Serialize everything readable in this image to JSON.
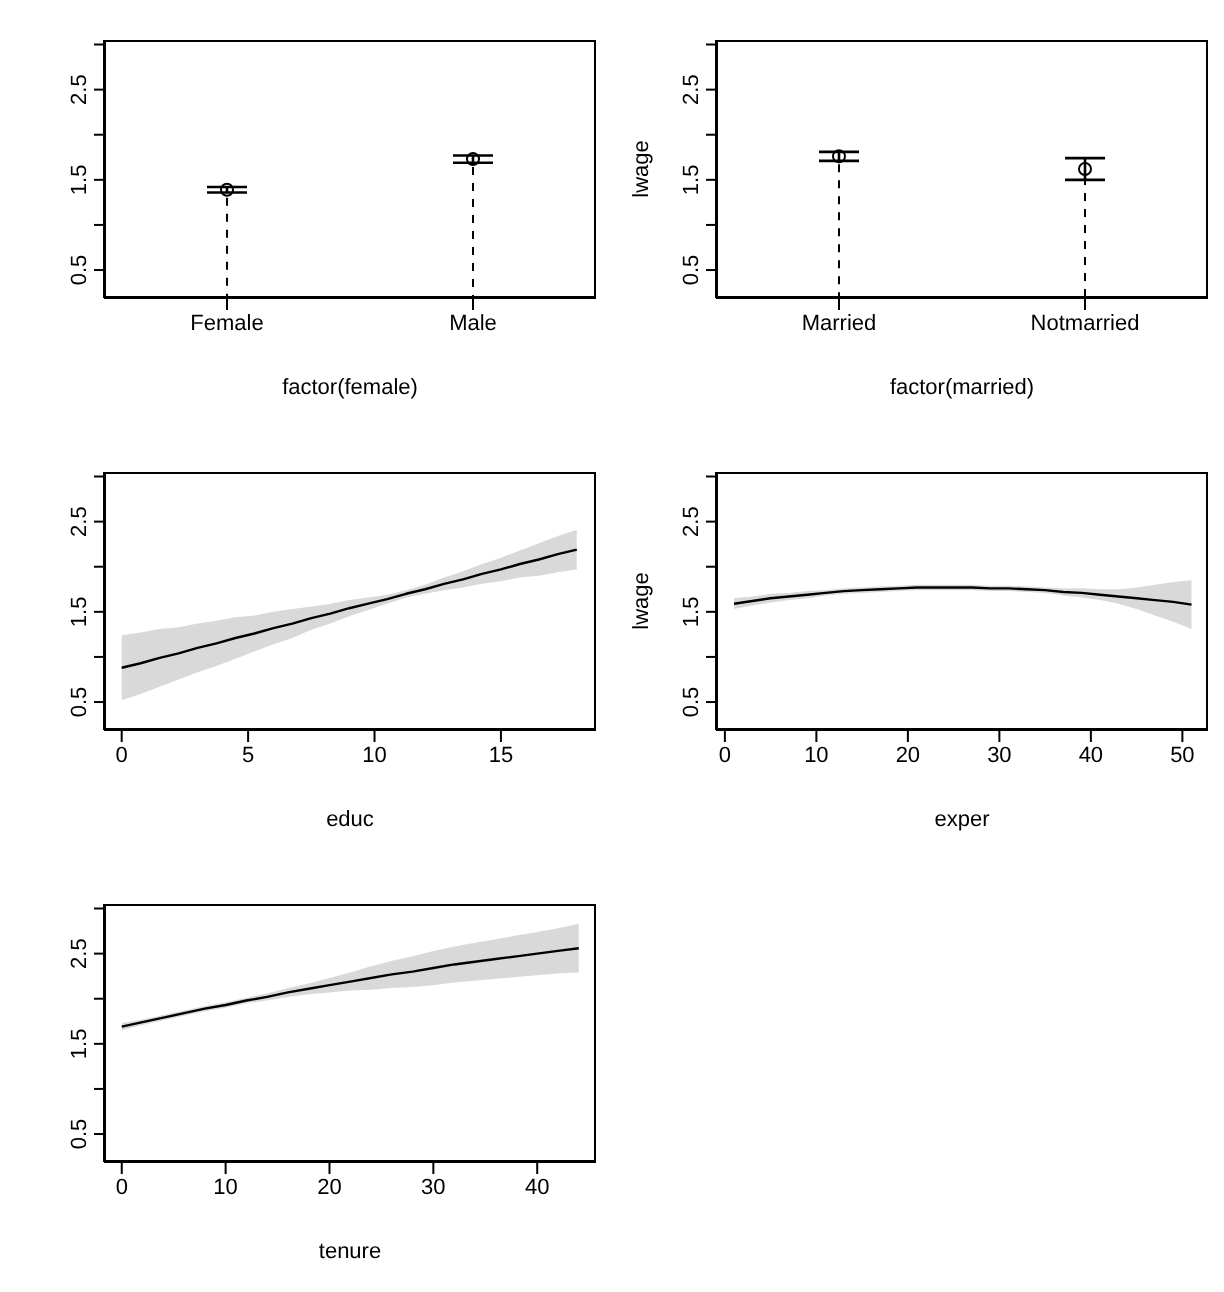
{
  "chart_data": [
    {
      "type": "lollipop",
      "xlabel": "factor(female)",
      "categories": [
        "Female",
        "Male"
      ],
      "values": [
        1.39,
        1.73
      ],
      "errors": [
        0.03,
        0.04
      ],
      "marker": "circle",
      "ylim": [
        0.19,
        3.05
      ],
      "yticks": [
        0.5,
        {
          "value": 1,
          "label": null
        },
        1.5,
        {
          "value": 2,
          "label": null
        },
        2.5,
        {
          "value": 3,
          "label": null
        }
      ]
    },
    {
      "type": "lollipop",
      "xlabel": "factor(married)",
      "ylabel": "lwage",
      "categories": [
        "Married",
        "Notmarried"
      ],
      "values": [
        1.76,
        1.62
      ],
      "errors": [
        0.05,
        0.12
      ],
      "marker": "circle",
      "ylim": [
        0.19,
        3.05
      ],
      "yticks": [
        0.5,
        {
          "value": 1,
          "label": null
        },
        1.5,
        {
          "value": 2,
          "label": null
        },
        2.5,
        {
          "value": 3,
          "label": null
        }
      ]
    },
    {
      "type": "line",
      "xlabel": "educ",
      "x": [
        0,
        0.75,
        1.5,
        2.25,
        3,
        3.75,
        4.5,
        5.25,
        6,
        6.75,
        7.5,
        8.25,
        9,
        9.75,
        10.5,
        11.25,
        12,
        12.75,
        13.5,
        14.25,
        15,
        15.75,
        16.5,
        17.25,
        18
      ],
      "series": [
        {
          "color": "#000000",
          "values": [
            0.88,
            0.93,
            0.99,
            1.04,
            1.1,
            1.15,
            1.21,
            1.26,
            1.32,
            1.37,
            1.43,
            1.48,
            1.54,
            1.59,
            1.64,
            1.7,
            1.75,
            1.81,
            1.86,
            1.92,
            1.97,
            2.03,
            2.08,
            2.14,
            2.19
          ],
          "lower": [
            0.52,
            0.59,
            0.67,
            0.75,
            0.83,
            0.9,
            0.98,
            1.06,
            1.14,
            1.21,
            1.3,
            1.37,
            1.45,
            1.52,
            1.59,
            1.66,
            1.7,
            1.74,
            1.77,
            1.81,
            1.84,
            1.88,
            1.9,
            1.94,
            1.97
          ],
          "upper": [
            1.24,
            1.27,
            1.31,
            1.33,
            1.37,
            1.4,
            1.44,
            1.46,
            1.5,
            1.53,
            1.56,
            1.59,
            1.63,
            1.66,
            1.69,
            1.74,
            1.8,
            1.88,
            1.95,
            2.03,
            2.1,
            2.18,
            2.26,
            2.34,
            2.41
          ]
        }
      ],
      "xlim": [
        -0.7,
        18.76
      ],
      "xticks": [
        0,
        5,
        10,
        15
      ],
      "ylim": [
        0.19,
        3.05
      ],
      "yticks": [
        0.5,
        {
          "value": 1,
          "label": null
        },
        1.5,
        {
          "value": 2,
          "label": null
        },
        2.5,
        {
          "value": 3,
          "label": null
        }
      ]
    },
    {
      "type": "line",
      "xlabel": "exper",
      "ylabel": "lwage",
      "x": [
        1,
        3,
        5,
        7,
        9,
        11,
        13,
        15,
        17,
        19,
        21,
        23,
        25,
        27,
        29,
        31,
        33,
        35,
        37,
        39,
        41,
        43,
        45,
        47,
        49,
        51
      ],
      "series": [
        {
          "color": "#000000",
          "values": [
            1.59,
            1.62,
            1.65,
            1.67,
            1.69,
            1.71,
            1.73,
            1.74,
            1.75,
            1.76,
            1.77,
            1.77,
            1.77,
            1.77,
            1.76,
            1.76,
            1.75,
            1.74,
            1.72,
            1.71,
            1.69,
            1.67,
            1.65,
            1.63,
            1.61,
            1.58
          ],
          "lower": [
            1.53,
            1.57,
            1.6,
            1.63,
            1.65,
            1.68,
            1.7,
            1.71,
            1.72,
            1.73,
            1.74,
            1.74,
            1.74,
            1.74,
            1.73,
            1.73,
            1.72,
            1.71,
            1.68,
            1.66,
            1.63,
            1.59,
            1.53,
            1.46,
            1.39,
            1.31
          ],
          "upper": [
            1.65,
            1.67,
            1.7,
            1.71,
            1.73,
            1.74,
            1.76,
            1.77,
            1.78,
            1.79,
            1.8,
            1.8,
            1.8,
            1.8,
            1.79,
            1.79,
            1.78,
            1.77,
            1.76,
            1.76,
            1.75,
            1.75,
            1.77,
            1.8,
            1.83,
            1.85
          ]
        }
      ],
      "xlim": [
        -0.97,
        52.8
      ],
      "xticks": [
        0,
        10,
        20,
        30,
        40,
        50
      ],
      "ylim": [
        0.19,
        3.05
      ],
      "yticks": [
        0.5,
        {
          "value": 1,
          "label": null
        },
        1.5,
        {
          "value": 2,
          "label": null
        },
        2.5,
        {
          "value": 3,
          "label": null
        }
      ]
    },
    {
      "type": "line",
      "xlabel": "tenure",
      "x": [
        0,
        2,
        4,
        6,
        8,
        10,
        12,
        14,
        16,
        18,
        20,
        22,
        24,
        26,
        28,
        30,
        32,
        34,
        36,
        38,
        40,
        42,
        44
      ],
      "series": [
        {
          "color": "#000000",
          "values": [
            1.69,
            1.74,
            1.79,
            1.84,
            1.89,
            1.93,
            1.98,
            2.02,
            2.07,
            2.11,
            2.15,
            2.19,
            2.23,
            2.27,
            2.3,
            2.34,
            2.38,
            2.41,
            2.44,
            2.47,
            2.5,
            2.53,
            2.56
          ],
          "lower": [
            1.65,
            1.71,
            1.76,
            1.81,
            1.86,
            1.9,
            1.95,
            1.98,
            2.02,
            2.05,
            2.07,
            2.09,
            2.1,
            2.12,
            2.13,
            2.15,
            2.18,
            2.2,
            2.22,
            2.24,
            2.26,
            2.28,
            2.29
          ],
          "upper": [
            1.73,
            1.77,
            1.82,
            1.87,
            1.92,
            1.96,
            2.01,
            2.06,
            2.12,
            2.17,
            2.23,
            2.29,
            2.36,
            2.42,
            2.47,
            2.53,
            2.58,
            2.62,
            2.66,
            2.7,
            2.74,
            2.78,
            2.83
          ]
        }
      ],
      "xlim": [
        -1.71,
        45.66
      ],
      "xticks": [
        0,
        10,
        20,
        30,
        40
      ],
      "ylim": [
        0.19,
        3.05
      ],
      "yticks": [
        0.5,
        {
          "value": 1,
          "label": null
        },
        1.5,
        {
          "value": 2,
          "label": null
        },
        2.5,
        {
          "value": 3,
          "label": null
        }
      ]
    }
  ]
}
